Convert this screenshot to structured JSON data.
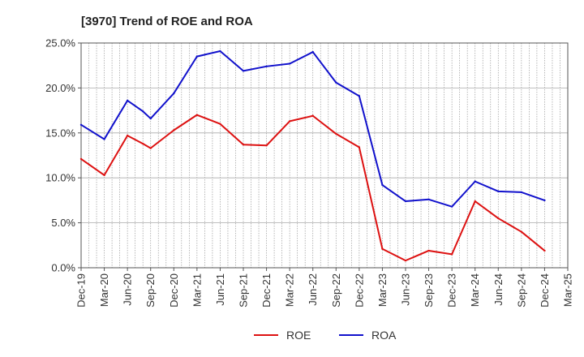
{
  "chart_data": {
    "type": "line",
    "title": "[3970]  Trend of ROE and ROA",
    "xlabel": "",
    "ylabel": "",
    "x_ticks": [
      "Dec-19",
      "Mar-20",
      "Jun-20",
      "Sep-20",
      "Dec-20",
      "Mar-21",
      "Jun-21",
      "Sep-21",
      "Dec-21",
      "Mar-22",
      "Jun-22",
      "Sep-22",
      "Dec-22",
      "Mar-23",
      "Jun-23",
      "Sep-23",
      "Dec-23",
      "Mar-24",
      "Jun-24",
      "Sep-24",
      "Dec-24",
      "Mar-25"
    ],
    "y_ticks": [
      "0.0%",
      "5.0%",
      "10.0%",
      "15.0%",
      "20.0%",
      "25.0%"
    ],
    "ylim": [
      0,
      25
    ],
    "grid": true,
    "legend_position": "bottom",
    "series": [
      {
        "name": "ROE",
        "color": "#dd1111",
        "points": [
          [
            "Dec-19",
            12.1
          ],
          [
            "Mar-20",
            10.3
          ],
          [
            "Jun-20",
            14.7
          ],
          [
            "Aug-20",
            13.8
          ],
          [
            "Sep-20",
            13.3
          ],
          [
            "Dec-20",
            15.3
          ],
          [
            "Mar-21",
            17.0
          ],
          [
            "Jun-21",
            16.0
          ],
          [
            "Sep-21",
            13.7
          ],
          [
            "Dec-21",
            13.6
          ],
          [
            "Mar-22",
            16.3
          ],
          [
            "Jun-22",
            16.9
          ],
          [
            "Sep-22",
            14.9
          ],
          [
            "Dec-22",
            13.4
          ],
          [
            "Mar-23",
            2.1
          ],
          [
            "Jun-23",
            0.8
          ],
          [
            "Sep-23",
            1.9
          ],
          [
            "Dec-23",
            1.5
          ],
          [
            "Mar-24",
            7.4
          ],
          [
            "Jun-24",
            5.5
          ],
          [
            "Sep-24",
            4.0
          ],
          [
            "Dec-24",
            1.9
          ]
        ]
      },
      {
        "name": "ROA",
        "color": "#1111cc",
        "points": [
          [
            "Dec-19",
            15.9
          ],
          [
            "Mar-20",
            14.3
          ],
          [
            "Jun-20",
            18.6
          ],
          [
            "Aug-20",
            17.4
          ],
          [
            "Sep-20",
            16.6
          ],
          [
            "Dec-20",
            19.4
          ],
          [
            "Mar-21",
            23.5
          ],
          [
            "Jun-21",
            24.1
          ],
          [
            "Sep-21",
            21.9
          ],
          [
            "Dec-21",
            22.4
          ],
          [
            "Mar-22",
            22.7
          ],
          [
            "Jun-22",
            24.0
          ],
          [
            "Sep-22",
            20.6
          ],
          [
            "Dec-22",
            19.1
          ],
          [
            "Mar-23",
            9.2
          ],
          [
            "Jun-23",
            7.4
          ],
          [
            "Sep-23",
            7.6
          ],
          [
            "Dec-23",
            6.8
          ],
          [
            "Mar-24",
            9.6
          ],
          [
            "Jun-24",
            8.5
          ],
          [
            "Sep-24",
            8.4
          ],
          [
            "Dec-24",
            7.5
          ]
        ]
      }
    ]
  }
}
